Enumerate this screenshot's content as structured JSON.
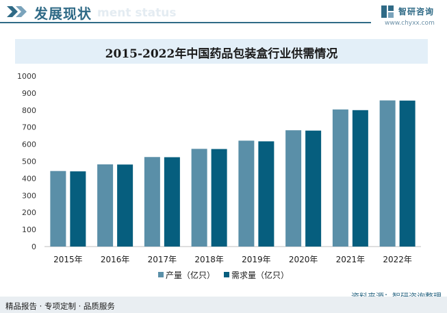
{
  "header": {
    "title": "发展现状",
    "watermark": "ment status"
  },
  "logo": {
    "name": "智研咨询",
    "url": "www.chyxx.com"
  },
  "colors": {
    "primary": "#2f6a86",
    "series_production": "#5a8fa8",
    "series_demand": "#065e7e",
    "title_band": "#e3eff8"
  },
  "chart_data": {
    "type": "bar",
    "title": "2015-2022年中国药品包装盒行业供需情况",
    "categories": [
      "2015年",
      "2016年",
      "2017年",
      "2018年",
      "2019年",
      "2020年",
      "2021年",
      "2022年"
    ],
    "series": [
      {
        "name": "产量（亿只）",
        "values": [
          443,
          482,
          525,
          573,
          621,
          682,
          804,
          857
        ]
      },
      {
        "name": "需求量（亿只）",
        "values": [
          441,
          481,
          524,
          572,
          617,
          680,
          800,
          856
        ]
      }
    ],
    "ylim": [
      0,
      1000
    ],
    "yticks": [
      0,
      100,
      200,
      300,
      400,
      500,
      600,
      700,
      800,
      900,
      1000
    ],
    "xlabel": "",
    "ylabel": "",
    "grid": false,
    "legend_position": "bottom"
  },
  "footer": {
    "tagline": "精品报告 · 专项定制 · 品质服务",
    "source": "资料来源：智研咨询整理"
  }
}
